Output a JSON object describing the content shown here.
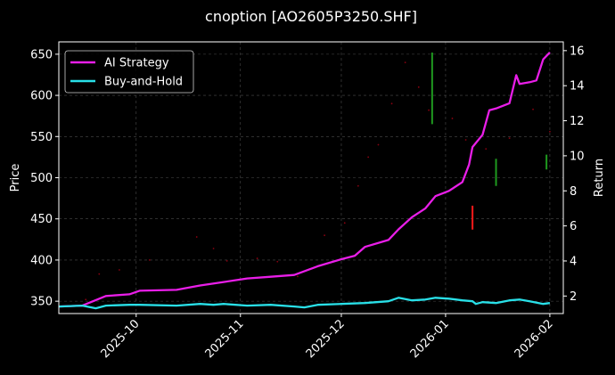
{
  "chart_data": {
    "type": "line",
    "title": "cnoption [AO2605P3250.SHF]",
    "ylabel": "Price",
    "y2label": "Return",
    "xlim": [
      "2025-09-08",
      "2026-02-05"
    ],
    "ylim": [
      335,
      665
    ],
    "y2lim": [
      1.0,
      16.5
    ],
    "x_ticks": [
      "2025-10",
      "2025-11",
      "2025-12",
      "2026-01",
      "2026-02"
    ],
    "x_tick_dates": [
      "2025-10-01",
      "2025-11-01",
      "2025-12-01",
      "2026-01-01",
      "2026-02-01"
    ],
    "y_ticks": [
      350,
      400,
      450,
      500,
      550,
      600,
      650
    ],
    "y2_ticks": [
      2,
      4,
      6,
      8,
      10,
      12,
      14,
      16
    ],
    "grid": true,
    "legend": {
      "position": "top-left",
      "entries": [
        "AI Strategy",
        "Buy-and-Hold"
      ]
    },
    "series": [
      {
        "name": "AI Strategy",
        "axis": "right",
        "color": "#e91ee8",
        "points": [
          [
            "2025-09-08",
            1.4
          ],
          [
            "2025-09-15",
            1.45
          ],
          [
            "2025-09-22",
            2.0
          ],
          [
            "2025-09-29",
            2.1
          ],
          [
            "2025-10-02",
            2.3
          ],
          [
            "2025-10-13",
            2.35
          ],
          [
            "2025-10-20",
            2.6
          ],
          [
            "2025-10-27",
            2.8
          ],
          [
            "2025-11-03",
            3.0
          ],
          [
            "2025-11-10",
            3.1
          ],
          [
            "2025-11-17",
            3.2
          ],
          [
            "2025-11-24",
            3.7
          ],
          [
            "2025-12-01",
            4.1
          ],
          [
            "2025-12-05",
            4.3
          ],
          [
            "2025-12-08",
            4.8
          ],
          [
            "2025-12-15",
            5.2
          ],
          [
            "2025-12-18",
            5.8
          ],
          [
            "2025-12-22",
            6.5
          ],
          [
            "2025-12-26",
            7.0
          ],
          [
            "2025-12-29",
            7.7
          ],
          [
            "2026-01-02",
            8.0
          ],
          [
            "2026-01-06",
            8.5
          ],
          [
            "2026-01-08",
            9.5
          ],
          [
            "2026-01-09",
            10.5
          ],
          [
            "2026-01-12",
            11.2
          ],
          [
            "2026-01-14",
            12.6
          ],
          [
            "2026-01-16",
            12.7
          ],
          [
            "2026-01-20",
            13.0
          ],
          [
            "2026-01-22",
            14.6
          ],
          [
            "2026-01-23",
            14.1
          ],
          [
            "2026-01-26",
            14.2
          ],
          [
            "2026-01-28",
            14.3
          ],
          [
            "2026-01-30",
            15.5
          ],
          [
            "2026-02-01",
            15.9
          ]
        ]
      },
      {
        "name": "Buy-and-Hold",
        "axis": "right",
        "color": "#29e0e8",
        "points": [
          [
            "2025-09-08",
            1.4
          ],
          [
            "2025-09-15",
            1.45
          ],
          [
            "2025-09-19",
            1.3
          ],
          [
            "2025-09-22",
            1.45
          ],
          [
            "2025-09-29",
            1.5
          ],
          [
            "2025-10-02",
            1.5
          ],
          [
            "2025-10-13",
            1.45
          ],
          [
            "2025-10-20",
            1.55
          ],
          [
            "2025-10-24",
            1.5
          ],
          [
            "2025-10-27",
            1.55
          ],
          [
            "2025-11-03",
            1.45
          ],
          [
            "2025-11-10",
            1.5
          ],
          [
            "2025-11-17",
            1.4
          ],
          [
            "2025-11-20",
            1.35
          ],
          [
            "2025-11-24",
            1.5
          ],
          [
            "2025-12-01",
            1.55
          ],
          [
            "2025-12-08",
            1.6
          ],
          [
            "2025-12-15",
            1.7
          ],
          [
            "2025-12-18",
            1.9
          ],
          [
            "2025-12-22",
            1.75
          ],
          [
            "2025-12-26",
            1.8
          ],
          [
            "2025-12-29",
            1.9
          ],
          [
            "2026-01-02",
            1.85
          ],
          [
            "2026-01-06",
            1.75
          ],
          [
            "2026-01-09",
            1.7
          ],
          [
            "2026-01-10",
            1.55
          ],
          [
            "2026-01-12",
            1.65
          ],
          [
            "2026-01-16",
            1.6
          ],
          [
            "2026-01-20",
            1.75
          ],
          [
            "2026-01-23",
            1.8
          ],
          [
            "2026-01-26",
            1.7
          ],
          [
            "2026-01-30",
            1.55
          ],
          [
            "2026-02-01",
            1.6
          ]
        ]
      }
    ],
    "price_markers": [
      {
        "date": "2025-12-28",
        "low": 565,
        "high": 652,
        "color": "#1f9a1f"
      },
      {
        "date": "2026-01-09",
        "low": 437,
        "high": 466,
        "color": "#ff1a1a"
      },
      {
        "date": "2026-01-16",
        "low": 490,
        "high": 523,
        "color": "#1f9a1f"
      },
      {
        "date": "2026-01-31",
        "low": 510,
        "high": 528,
        "color": "#1f9a1f"
      }
    ],
    "price_dots": [
      [
        "2025-09-16",
        352
      ],
      [
        "2025-09-20",
        383
      ],
      [
        "2025-09-26",
        388
      ],
      [
        "2025-10-05",
        400
      ],
      [
        "2025-10-19",
        428
      ],
      [
        "2025-10-24",
        414
      ],
      [
        "2025-10-28",
        399
      ],
      [
        "2025-11-06",
        402
      ],
      [
        "2025-11-12",
        398
      ],
      [
        "2025-11-18",
        380
      ],
      [
        "2025-11-26",
        430
      ],
      [
        "2025-12-02",
        445
      ],
      [
        "2025-12-06",
        490
      ],
      [
        "2025-12-09",
        525
      ],
      [
        "2025-12-12",
        540
      ],
      [
        "2025-12-16",
        590
      ],
      [
        "2025-12-20",
        640
      ],
      [
        "2025-12-24",
        610
      ],
      [
        "2025-12-27",
        582
      ],
      [
        "2026-01-03",
        572
      ],
      [
        "2026-01-07",
        546
      ],
      [
        "2026-01-13",
        535
      ],
      [
        "2026-01-20",
        548
      ],
      [
        "2026-01-27",
        583
      ],
      [
        "2026-02-01",
        556
      ]
    ]
  }
}
